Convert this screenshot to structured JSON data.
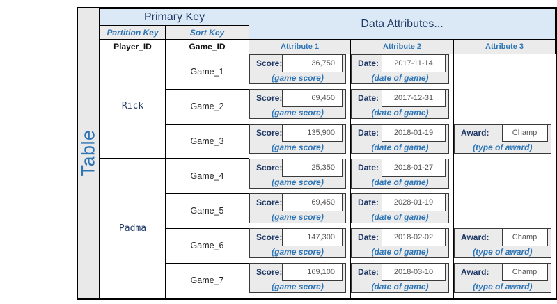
{
  "diagram": {
    "side_label": "Table",
    "header": {
      "primary_key": "Primary Key",
      "data_attributes": "Data Attributes...",
      "partition_key": "Partition Key",
      "sort_key": "Sort Key",
      "player_id": "Player_ID",
      "game_id": "Game_ID",
      "attribute_columns": [
        "Attribute 1",
        "Attribute 2",
        "Attribute 3"
      ]
    },
    "labels": {
      "score": "Score:",
      "date": "Date:",
      "award": "Award:",
      "score_caption": "(game score)",
      "date_caption": "(date of game)",
      "award_caption": "(type of award)"
    },
    "groups": [
      {
        "player": "Rick",
        "rows": [
          {
            "game": "Game_1",
            "score": "36,750",
            "date": "2017-11-14",
            "award": null
          },
          {
            "game": "Game_2",
            "score": "69,450",
            "date": "2017-12-31",
            "award": null
          },
          {
            "game": "Game_3",
            "score": "135,900",
            "date": "2018-01-19",
            "award": "Champ"
          }
        ]
      },
      {
        "player": "Padma",
        "rows": [
          {
            "game": "Game_4",
            "score": "25,350",
            "date": "2018-01-27",
            "award": null
          },
          {
            "game": "Game_5",
            "score": "69,450",
            "date": "2028-01-19",
            "award": null
          },
          {
            "game": "Game_6",
            "score": "147,300",
            "date": "2018-02-02",
            "award": "Champ"
          },
          {
            "game": "Game_7",
            "score": "169,100",
            "date": "2018-03-10",
            "award": "Champ"
          }
        ]
      }
    ],
    "colors": {
      "header_blue_bg": "#dbe9f6",
      "navy_text": "#1f3864",
      "accent_blue": "#2e75b6",
      "cell_gray": "#ebebeb",
      "value_text": "#555555"
    }
  }
}
